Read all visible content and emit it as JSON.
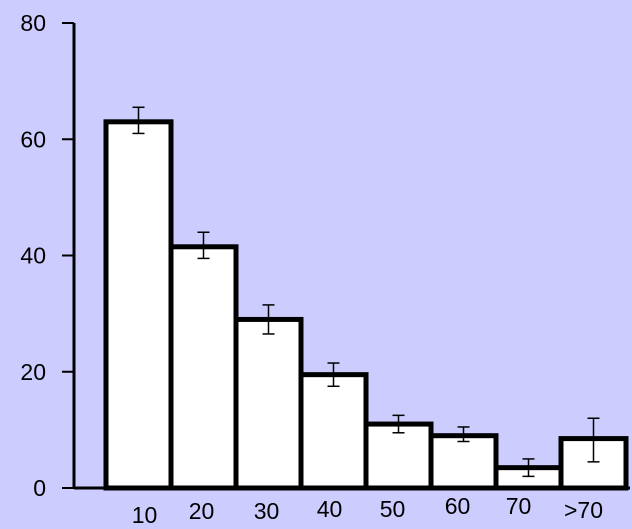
{
  "chart_data": {
    "type": "bar",
    "title": "",
    "xlabel": "",
    "ylabel": "",
    "categories": [
      "10",
      "20",
      "30",
      "40",
      "50",
      "60",
      "70",
      ">70"
    ],
    "values": [
      63,
      41.5,
      29,
      19.5,
      11,
      9,
      3.5,
      8.5
    ],
    "error_low": [
      61,
      39.5,
      26.5,
      17.5,
      9.5,
      8,
      2,
      4.5
    ],
    "error_high": [
      65.5,
      44,
      31.5,
      21.5,
      12.5,
      10.5,
      5,
      12
    ],
    "ylim": [
      0,
      80
    ],
    "yticks": [
      "0",
      "20",
      "40",
      "60",
      "80"
    ],
    "ytick_values": [
      0,
      20,
      40,
      60,
      80
    ],
    "grid": false,
    "legend": "none",
    "colors": {
      "background": "#ccccff",
      "bar_fill": "#ffffff",
      "bar_stroke": "#000000"
    }
  }
}
